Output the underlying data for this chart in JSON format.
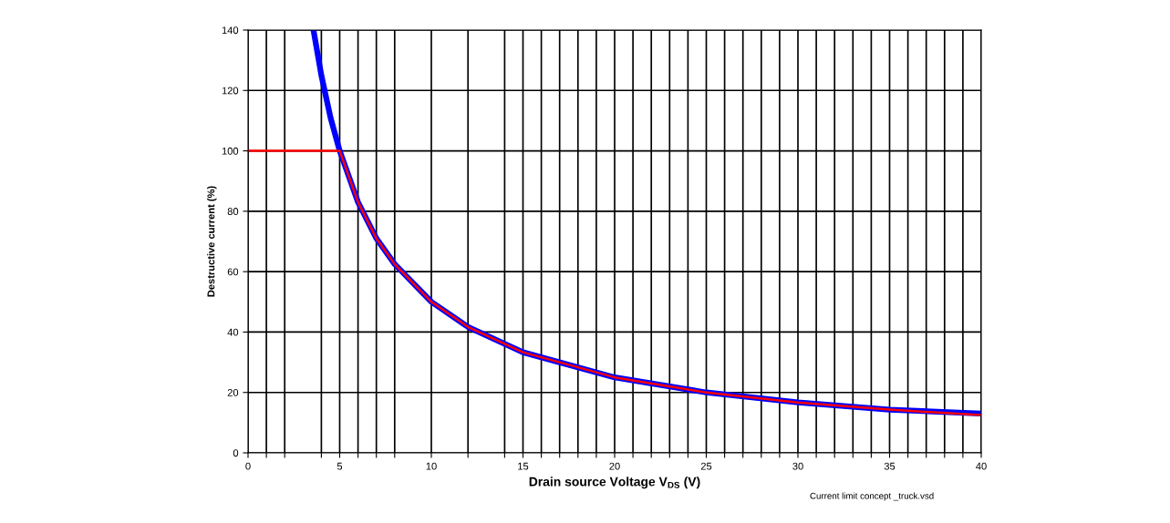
{
  "chart_data": {
    "type": "line",
    "xlabel": "Drain source Voltage V$_{DS}$ (V)",
    "ylabel": "Destructive current (%)",
    "annotations": [
      "Current limit concept _truck.vsd"
    ],
    "xlim": [
      0,
      40
    ],
    "ylim": [
      0,
      140
    ],
    "xticks": [
      0,
      {
        "value": 1,
        "label": null
      },
      {
        "value": 2,
        "label": null
      },
      {
        "value": 4,
        "label": null
      },
      5,
      {
        "value": 6,
        "label": null
      },
      {
        "value": 7,
        "label": null
      },
      {
        "value": 8,
        "label": null
      },
      10,
      {
        "value": 12,
        "label": null
      },
      {
        "value": 14,
        "label": null
      },
      15,
      {
        "value": 16,
        "label": null
      },
      {
        "value": 17,
        "label": null
      },
      {
        "value": 18,
        "label": null
      },
      {
        "value": 19,
        "label": null
      },
      20,
      {
        "value": 21,
        "label": null
      },
      {
        "value": 22,
        "label": null
      },
      {
        "value": 23,
        "label": null
      },
      {
        "value": 24,
        "label": null
      },
      25,
      {
        "value": 26,
        "label": null
      },
      {
        "value": 27,
        "label": null
      },
      {
        "value": 28,
        "label": null
      },
      {
        "value": 29,
        "label": null
      },
      30,
      {
        "value": 31,
        "label": null
      },
      {
        "value": 32,
        "label": null
      },
      {
        "value": 33,
        "label": null
      },
      {
        "value": 34,
        "label": null
      },
      35,
      {
        "value": 36,
        "label": null
      },
      {
        "value": 37,
        "label": null
      },
      {
        "value": 38,
        "label": null
      },
      {
        "value": 39,
        "label": null
      },
      40
    ],
    "yticks": [
      0,
      20,
      40,
      60,
      80,
      100,
      120,
      140
    ],
    "grid": true,
    "legend": false,
    "series": [
      {
        "color": "#0000ff",
        "x": [
          3.57,
          4,
          4.5,
          5,
          6,
          7,
          8,
          10,
          12,
          15,
          20,
          25,
          30,
          35,
          40
        ],
        "values": [
          140,
          125,
          111,
          100,
          83,
          71,
          62.5,
          50,
          41.7,
          33.3,
          25,
          20,
          16.7,
          14.3,
          13
        ]
      },
      {
        "color": "#ff0000",
        "x": [
          0,
          5,
          6,
          7,
          8,
          10,
          12,
          15,
          20,
          25,
          30,
          35,
          40
        ],
        "values": [
          100,
          100,
          83,
          71,
          62.5,
          50,
          41.7,
          33.3,
          25,
          20,
          16.7,
          14.3,
          12.5
        ]
      }
    ]
  }
}
